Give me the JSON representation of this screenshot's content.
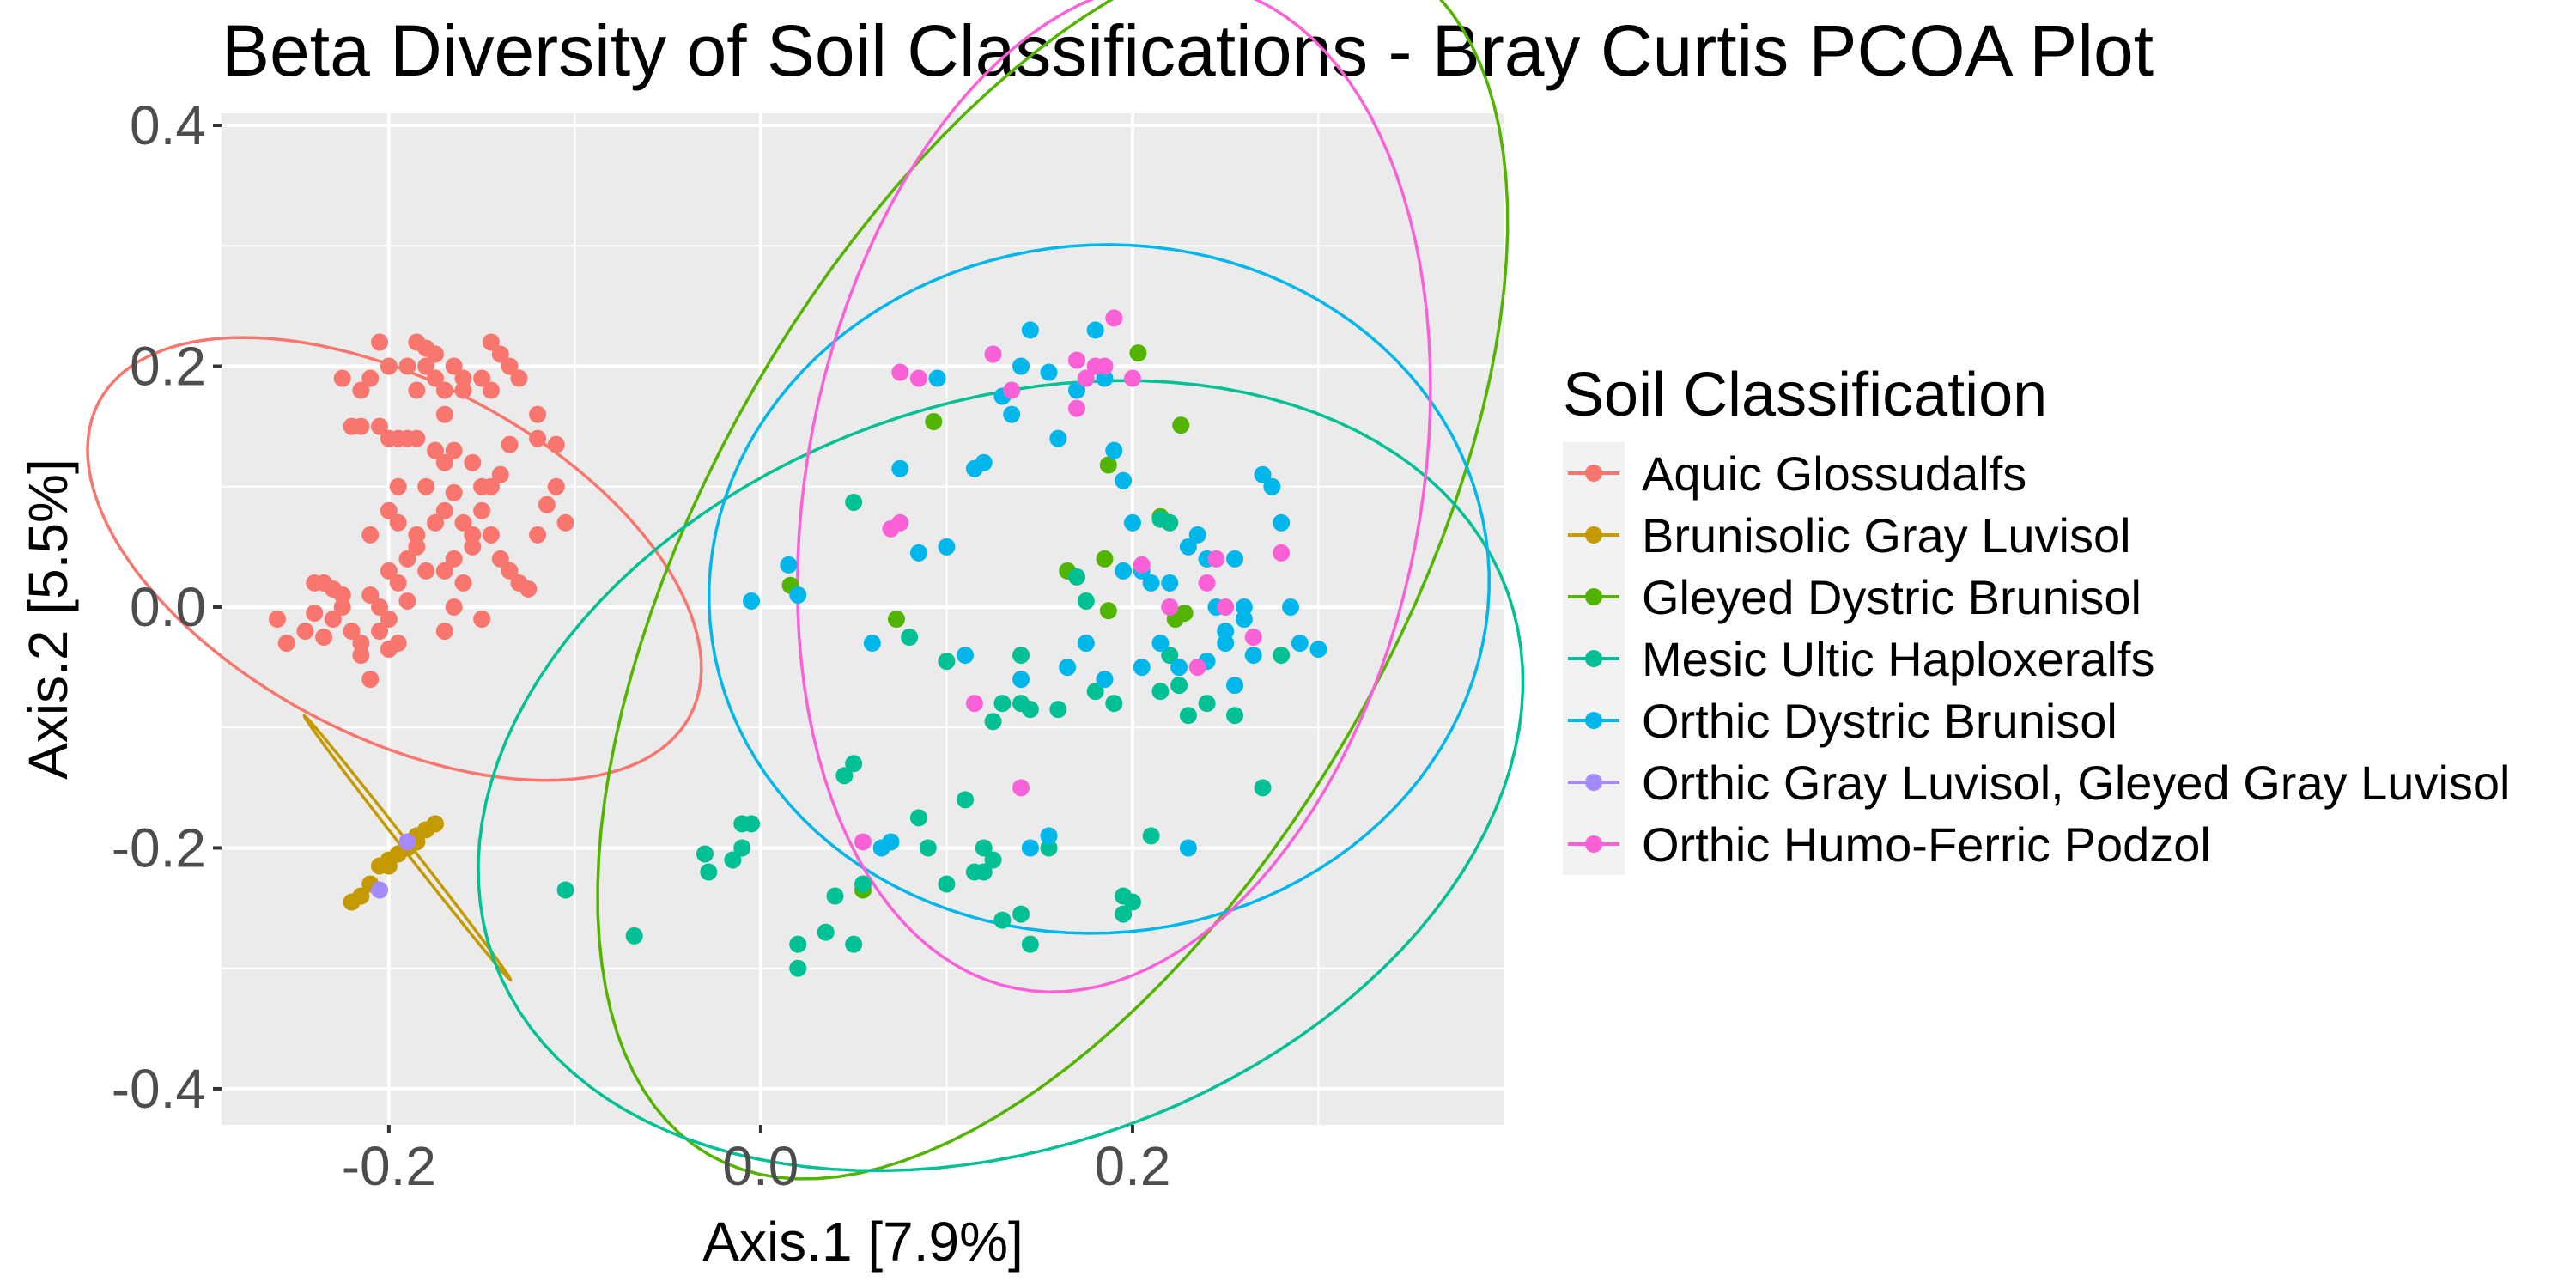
{
  "chart_data": {
    "type": "scatter",
    "title": "Beta Diversity of Soil Classifications - Bray Curtis PCOA Plot",
    "xlabel": "Axis.1   [7.9%]",
    "ylabel": "Axis.2   [5.5%]",
    "xlim": [
      -0.29,
      0.4
    ],
    "ylim": [
      -0.43,
      0.41
    ],
    "x_ticks": [
      -0.2,
      0.0,
      0.2
    ],
    "x_tick_labels": [
      "-0.2",
      "0.0",
      "0.2"
    ],
    "y_ticks": [
      -0.4,
      -0.2,
      0.0,
      0.2,
      0.4
    ],
    "y_tick_labels": [
      "-0.4",
      "-0.2",
      "0.0",
      "0.2",
      "0.4"
    ],
    "grid": true,
    "legend": {
      "title": "Soil Classification",
      "position": "right"
    },
    "ellipses": true,
    "series": [
      {
        "name": "Aquic Glossudalfs",
        "color": "#F8766D",
        "ellipse": {
          "cx": -0.197,
          "cy": 0.04,
          "rx": 0.095,
          "ry": 0.18,
          "angle": 62
        },
        "points": [
          [
            -0.26,
            -0.01
          ],
          [
            -0.255,
            -0.03
          ],
          [
            -0.245,
            -0.02
          ],
          [
            -0.24,
            -0.005
          ],
          [
            -0.235,
            -0.025
          ],
          [
            -0.23,
            -0.01
          ],
          [
            -0.225,
            0.0
          ],
          [
            -0.225,
            0.01
          ],
          [
            -0.22,
            -0.02
          ],
          [
            -0.215,
            -0.03
          ],
          [
            -0.21,
            -0.06
          ],
          [
            -0.215,
            -0.04
          ],
          [
            -0.205,
            -0.02
          ],
          [
            -0.205,
            0.0
          ],
          [
            -0.2,
            -0.01
          ],
          [
            -0.2,
            -0.035
          ],
          [
            -0.195,
            -0.03
          ],
          [
            -0.19,
            0.005
          ],
          [
            -0.195,
            0.02
          ],
          [
            -0.2,
            0.03
          ],
          [
            -0.19,
            0.04
          ],
          [
            -0.185,
            0.05
          ],
          [
            -0.18,
            0.03
          ],
          [
            -0.17,
            0.03
          ],
          [
            -0.165,
            0.04
          ],
          [
            -0.16,
            0.02
          ],
          [
            -0.155,
            0.05
          ],
          [
            -0.155,
            0.06
          ],
          [
            -0.15,
            0.08
          ],
          [
            -0.145,
            0.06
          ],
          [
            -0.14,
            0.04
          ],
          [
            -0.135,
            0.03
          ],
          [
            -0.125,
            0.015
          ],
          [
            -0.13,
            0.02
          ],
          [
            -0.12,
            0.06
          ],
          [
            -0.115,
            0.085
          ],
          [
            -0.11,
            0.1
          ],
          [
            -0.105,
            0.07
          ],
          [
            -0.11,
            0.135
          ],
          [
            -0.12,
            0.14
          ],
          [
            -0.12,
            0.16
          ],
          [
            -0.13,
            0.19
          ],
          [
            -0.135,
            0.2
          ],
          [
            -0.14,
            0.21
          ],
          [
            -0.145,
            0.22
          ],
          [
            -0.15,
            0.19
          ],
          [
            -0.16,
            0.19
          ],
          [
            -0.165,
            0.2
          ],
          [
            -0.17,
            0.18
          ],
          [
            -0.175,
            0.19
          ],
          [
            -0.18,
            0.2
          ],
          [
            -0.175,
            0.21
          ],
          [
            -0.18,
            0.215
          ],
          [
            -0.19,
            0.2
          ],
          [
            -0.2,
            0.2
          ],
          [
            -0.205,
            0.22
          ],
          [
            -0.21,
            0.19
          ],
          [
            -0.225,
            0.19
          ],
          [
            -0.22,
            0.15
          ],
          [
            -0.215,
            0.15
          ],
          [
            -0.205,
            0.15
          ],
          [
            -0.2,
            0.14
          ],
          [
            -0.195,
            0.14
          ],
          [
            -0.19,
            0.14
          ],
          [
            -0.185,
            0.14
          ],
          [
            -0.175,
            0.13
          ],
          [
            -0.17,
            0.12
          ],
          [
            -0.165,
            0.13
          ],
          [
            -0.155,
            0.12
          ],
          [
            -0.15,
            0.1
          ],
          [
            -0.165,
            0.095
          ],
          [
            -0.18,
            0.1
          ],
          [
            -0.195,
            0.1
          ],
          [
            -0.2,
            0.08
          ],
          [
            -0.185,
            0.06
          ],
          [
            -0.175,
            0.07
          ],
          [
            -0.17,
            0.08
          ],
          [
            -0.16,
            0.07
          ],
          [
            -0.145,
            0.1
          ],
          [
            -0.14,
            0.11
          ],
          [
            -0.16,
            0.18
          ],
          [
            -0.185,
            0.18
          ],
          [
            -0.215,
            0.18
          ],
          [
            -0.235,
            0.02
          ],
          [
            -0.24,
            0.02
          ],
          [
            -0.21,
            0.01
          ],
          [
            -0.17,
            -0.02
          ],
          [
            -0.15,
            -0.01
          ],
          [
            -0.195,
            0.07
          ],
          [
            -0.23,
            0.015
          ],
          [
            -0.17,
            0.16
          ],
          [
            -0.21,
            0.06
          ],
          [
            -0.135,
            0.135
          ],
          [
            -0.185,
            0.22
          ],
          [
            -0.145,
            0.18
          ],
          [
            -0.165,
            0.0
          ]
        ]
      },
      {
        "name": "Brunisolic Gray Luvisol",
        "color": "#C49A00",
        "ellipse": {
          "cx": -0.19,
          "cy": -0.2,
          "rx": 0.09,
          "ry": 0.002,
          "angle": -52
        },
        "points": [
          [
            -0.22,
            -0.245
          ],
          [
            -0.215,
            -0.24
          ],
          [
            -0.21,
            -0.23
          ],
          [
            -0.205,
            -0.215
          ],
          [
            -0.2,
            -0.21
          ],
          [
            -0.195,
            -0.205
          ],
          [
            -0.19,
            -0.2
          ],
          [
            -0.185,
            -0.19
          ],
          [
            -0.18,
            -0.185
          ],
          [
            -0.175,
            -0.18
          ],
          [
            -0.2,
            -0.215
          ],
          [
            -0.185,
            -0.195
          ]
        ]
      },
      {
        "name": "Gleyed Dystric Brunisol",
        "color": "#53B400",
        "ellipse": {
          "cx": 0.157,
          "cy": 0.04,
          "rx": 0.37,
          "ry": 0.185,
          "angle": 60
        },
        "points": [
          [
            0.093,
            0.154
          ],
          [
            0.203,
            0.211
          ],
          [
            0.226,
            0.151
          ],
          [
            0.187,
            0.118
          ],
          [
            0.215,
            0.075
          ],
          [
            0.165,
            0.03
          ],
          [
            0.185,
            0.04
          ],
          [
            0.187,
            -0.003
          ],
          [
            0.228,
            -0.005
          ],
          [
            0.223,
            -0.01
          ],
          [
            0.073,
            -0.01
          ],
          [
            0.016,
            0.018
          ],
          [
            0.055,
            -0.235
          ]
        ]
      },
      {
        "name": "Mesic Ultic Haploxeralfs",
        "color": "#00C094",
        "ellipse": {
          "cx": 0.129,
          "cy": -0.14,
          "rx": 0.29,
          "ry": 0.2,
          "angle": 20
        },
        "points": [
          [
            -0.105,
            -0.235
          ],
          [
            -0.068,
            -0.273
          ],
          [
            -0.03,
            -0.205
          ],
          [
            -0.028,
            -0.22
          ],
          [
            -0.015,
            -0.21
          ],
          [
            -0.01,
            -0.2
          ],
          [
            -0.01,
            -0.18
          ],
          [
            -0.005,
            -0.18
          ],
          [
            0.02,
            -0.28
          ],
          [
            0.02,
            -0.3
          ],
          [
            0.035,
            -0.27
          ],
          [
            0.04,
            -0.24
          ],
          [
            0.045,
            -0.14
          ],
          [
            0.05,
            -0.13
          ],
          [
            0.05,
            -0.28
          ],
          [
            0.055,
            -0.23
          ],
          [
            0.05,
            0.087
          ],
          [
            0.085,
            -0.175
          ],
          [
            0.09,
            -0.2
          ],
          [
            0.1,
            -0.23
          ],
          [
            0.115,
            -0.22
          ],
          [
            0.12,
            -0.22
          ],
          [
            0.12,
            -0.2
          ],
          [
            0.125,
            -0.21
          ],
          [
            0.13,
            -0.26
          ],
          [
            0.14,
            -0.255
          ],
          [
            0.145,
            -0.28
          ],
          [
            0.14,
            -0.04
          ],
          [
            0.14,
            -0.08
          ],
          [
            0.145,
            -0.085
          ],
          [
            0.16,
            -0.085
          ],
          [
            0.17,
            0.025
          ],
          [
            0.175,
            0.005
          ],
          [
            0.18,
            -0.07
          ],
          [
            0.19,
            -0.08
          ],
          [
            0.195,
            -0.24
          ],
          [
            0.195,
            -0.255
          ],
          [
            0.2,
            -0.245
          ],
          [
            0.21,
            -0.19
          ],
          [
            0.215,
            -0.07
          ],
          [
            0.215,
            0.073
          ],
          [
            0.22,
            0.07
          ],
          [
            0.225,
            -0.065
          ],
          [
            0.22,
            -0.04
          ],
          [
            0.23,
            -0.09
          ],
          [
            0.24,
            -0.08
          ],
          [
            0.255,
            -0.09
          ],
          [
            0.27,
            -0.15
          ],
          [
            0.28,
            -0.04
          ],
          [
            0.155,
            -0.2
          ],
          [
            0.08,
            -0.025
          ],
          [
            0.1,
            -0.045
          ],
          [
            0.13,
            -0.08
          ],
          [
            0.11,
            -0.16
          ],
          [
            0.125,
            -0.095
          ]
        ]
      },
      {
        "name": "Orthic Dystric Brunisol",
        "color": "#00B6EB",
        "ellipse": {
          "cx": 0.182,
          "cy": 0.015,
          "rx": 0.21,
          "ry": 0.185,
          "angle": 5
        },
        "points": [
          [
            -0.005,
            0.005
          ],
          [
            0.015,
            0.035
          ],
          [
            0.02,
            0.01
          ],
          [
            0.06,
            -0.03
          ],
          [
            0.065,
            -0.2
          ],
          [
            0.07,
            -0.195
          ],
          [
            0.075,
            0.115
          ],
          [
            0.085,
            0.045
          ],
          [
            0.095,
            0.19
          ],
          [
            0.1,
            0.05
          ],
          [
            0.11,
            -0.04
          ],
          [
            0.115,
            0.115
          ],
          [
            0.12,
            0.12
          ],
          [
            0.125,
            0.21
          ],
          [
            0.13,
            0.175
          ],
          [
            0.135,
            0.16
          ],
          [
            0.14,
            0.2
          ],
          [
            0.145,
            0.23
          ],
          [
            0.155,
            0.195
          ],
          [
            0.16,
            0.14
          ],
          [
            0.17,
            0.18
          ],
          [
            0.18,
            0.23
          ],
          [
            0.185,
            0.19
          ],
          [
            0.19,
            0.13
          ],
          [
            0.195,
            0.105
          ],
          [
            0.2,
            0.07
          ],
          [
            0.205,
            0.03
          ],
          [
            0.21,
            0.02
          ],
          [
            0.215,
            -0.03
          ],
          [
            0.22,
            0.0
          ],
          [
            0.225,
            -0.05
          ],
          [
            0.23,
            0.05
          ],
          [
            0.235,
            0.06
          ],
          [
            0.24,
            0.04
          ],
          [
            0.245,
            0.0
          ],
          [
            0.25,
            -0.02
          ],
          [
            0.255,
            0.04
          ],
          [
            0.26,
            0.0
          ],
          [
            0.265,
            -0.04
          ],
          [
            0.27,
            0.11
          ],
          [
            0.275,
            0.1
          ],
          [
            0.28,
            0.07
          ],
          [
            0.285,
            0.0
          ],
          [
            0.29,
            -0.03
          ],
          [
            0.3,
            -0.035
          ],
          [
            0.14,
            -0.06
          ],
          [
            0.145,
            -0.2
          ],
          [
            0.155,
            -0.19
          ],
          [
            0.165,
            -0.05
          ],
          [
            0.175,
            -0.03
          ],
          [
            0.185,
            -0.06
          ],
          [
            0.195,
            0.03
          ],
          [
            0.205,
            -0.05
          ],
          [
            0.23,
            -0.2
          ],
          [
            0.25,
            -0.03
          ],
          [
            0.26,
            -0.01
          ],
          [
            0.255,
            -0.065
          ],
          [
            0.24,
            -0.045
          ],
          [
            0.22,
            0.02
          ]
        ]
      },
      {
        "name": "Orthic Gray Luvisol, Gleyed Gray Luvisol",
        "color": "#A58AFF",
        "ellipse": null,
        "points": [
          [
            -0.19,
            -0.195
          ],
          [
            -0.205,
            -0.235
          ]
        ]
      },
      {
        "name": "Orthic Humo-Ferric Podzol",
        "color": "#FB61D7",
        "ellipse": {
          "cx": 0.19,
          "cy": 0.1,
          "rx": 0.275,
          "ry": 0.165,
          "angle": 79
        },
        "points": [
          [
            0.075,
            0.195
          ],
          [
            0.085,
            0.19
          ],
          [
            0.07,
            0.065
          ],
          [
            0.075,
            0.07
          ],
          [
            0.115,
            -0.08
          ],
          [
            0.125,
            0.21
          ],
          [
            0.135,
            0.18
          ],
          [
            0.14,
            -0.15
          ],
          [
            0.17,
            0.205
          ],
          [
            0.175,
            0.19
          ],
          [
            0.18,
            0.2
          ],
          [
            0.185,
            0.2
          ],
          [
            0.19,
            0.24
          ],
          [
            0.2,
            0.19
          ],
          [
            0.205,
            0.035
          ],
          [
            0.22,
            0.0
          ],
          [
            0.235,
            -0.05
          ],
          [
            0.24,
            0.02
          ],
          [
            0.245,
            0.04
          ],
          [
            0.25,
            0.0
          ],
          [
            0.265,
            -0.025
          ],
          [
            0.28,
            0.045
          ],
          [
            0.055,
            -0.195
          ],
          [
            0.17,
            0.165
          ]
        ]
      }
    ]
  }
}
